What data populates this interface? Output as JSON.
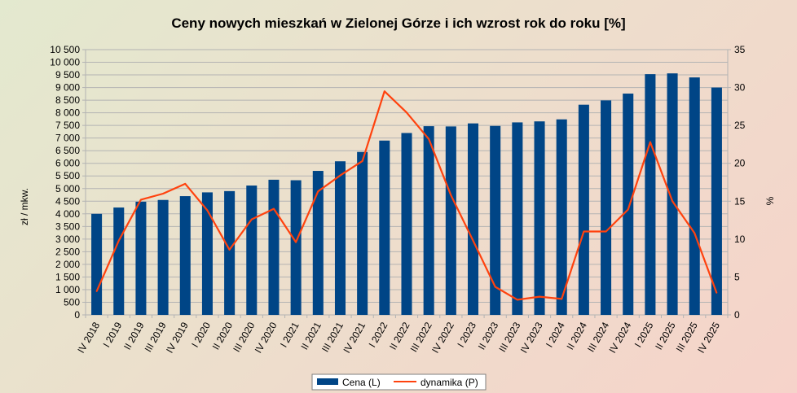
{
  "chart_data": {
    "type": "bar",
    "title": "Ceny nowych mieszkań w Zielonej Górze i ich wzrost rok do roku [%]",
    "ylabel": "zł / mkw.",
    "y2label": "%",
    "ylim": [
      0,
      10500
    ],
    "y2lim": [
      0,
      35
    ],
    "yticks": [
      "0",
      "500",
      "1 000",
      "1 500",
      "2 000",
      "2 500",
      "3 000",
      "3 500",
      "4 000",
      "4 500",
      "5 000",
      "5 500",
      "6 000",
      "6 500",
      "7 000",
      "7 500",
      "8 000",
      "8 500",
      "9 000",
      "9 500",
      "10 000",
      "10 500"
    ],
    "y2ticks": [
      "0",
      "5",
      "10",
      "15",
      "20",
      "25",
      "30",
      "35"
    ],
    "grid": true,
    "legend_position": "bottom",
    "categories": [
      "IV 2018",
      "I 2019",
      "II 2019",
      "III 2019",
      "IV 2019",
      "I 2020",
      "II 2020",
      "III 2020",
      "IV 2020",
      "I 2021",
      "II 2021",
      "III 2021",
      "IV 2021",
      "I 2022",
      "II 2022",
      "III 2022",
      "IV 2022",
      "I 2023",
      "II 2023",
      "III 2023",
      "IV 2023",
      "I 2024",
      "II 2024",
      "III 2024",
      "IV 2024",
      "I 2025",
      "II 2025",
      "III 2025",
      "IV 2025"
    ],
    "series": [
      {
        "name": "Cena (L)",
        "type": "bar",
        "axis": "left",
        "color": "#004586",
        "values": [
          4000,
          4250,
          4480,
          4550,
          4700,
          4850,
          4900,
          5120,
          5350,
          5330,
          5700,
          6080,
          6450,
          6900,
          7200,
          7470,
          7460,
          7580,
          7480,
          7620,
          7660,
          7740,
          8320,
          8490,
          8760,
          9530,
          9560,
          9400,
          9000
        ]
      },
      {
        "name": "dynamika (P)",
        "type": "line",
        "axis": "right",
        "color": "#ff420e",
        "values": [
          3.1,
          9.8,
          15.2,
          16.0,
          17.3,
          13.8,
          8.6,
          12.6,
          14.0,
          9.6,
          16.3,
          18.4,
          20.3,
          29.5,
          26.7,
          23.2,
          15.8,
          9.8,
          3.7,
          2.0,
          2.4,
          2.1,
          11.0,
          11.0,
          13.9,
          22.8,
          15.0,
          10.8,
          2.9
        ]
      }
    ]
  }
}
